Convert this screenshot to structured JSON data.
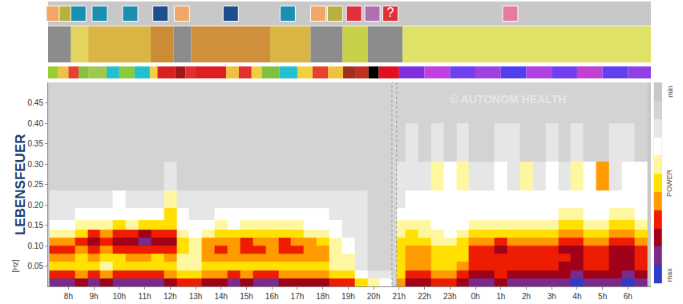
{
  "chart_data": {
    "type": "heatmap",
    "ylabel": "LEBENSFEUER",
    "yunit": "[Hz]",
    "watermark": "© AUTONOM HEALTH",
    "xlim": [
      7.2,
      30.9
    ],
    "xticks": [
      {
        "value": 8,
        "label": "8h"
      },
      {
        "value": 9,
        "label": "9h"
      },
      {
        "value": 10,
        "label": "10h"
      },
      {
        "value": 11,
        "label": "11h"
      },
      {
        "value": 12,
        "label": "12h"
      },
      {
        "value": 13,
        "label": "13h"
      },
      {
        "value": 14,
        "label": "14h"
      },
      {
        "value": 15,
        "label": "15h"
      },
      {
        "value": 16,
        "label": "16h"
      },
      {
        "value": 17,
        "label": "17h"
      },
      {
        "value": 18,
        "label": "18h"
      },
      {
        "value": 19,
        "label": "19h"
      },
      {
        "value": 20,
        "label": "20h"
      },
      {
        "value": 21,
        "label": "21h"
      },
      {
        "value": 22,
        "label": "22h"
      },
      {
        "value": 23,
        "label": "23h"
      },
      {
        "value": 24,
        "label": "0h"
      },
      {
        "value": 25,
        "label": "1h"
      },
      {
        "value": 26,
        "label": "2h"
      },
      {
        "value": 27,
        "label": "3h"
      },
      {
        "value": 28,
        "label": "4h"
      },
      {
        "value": 29,
        "label": "5h"
      },
      {
        "value": 30,
        "label": "6h"
      }
    ],
    "ylim": [
      0,
      0.5
    ],
    "yticks": [
      0.05,
      {
        "value": 0.1,
        "label": "0.10"
      },
      0.15,
      {
        "value": 0.2,
        "label": "0.20"
      },
      0.25,
      {
        "value": 0.3,
        "label": "0.30"
      },
      0.35,
      {
        "value": 0.4,
        "label": "0.40"
      },
      0.45
    ],
    "grid": false,
    "x": [
      7.5,
      8,
      8.5,
      9,
      9.5,
      10,
      10.5,
      11,
      11.5,
      12,
      12.5,
      13,
      13.5,
      14,
      14.5,
      15,
      15.5,
      16,
      16.5,
      17,
      17.5,
      18,
      18.5,
      19,
      19.5,
      20,
      20.5,
      21,
      21.5,
      22,
      22.5,
      23,
      23.5,
      24,
      24.5,
      25,
      25.5,
      26,
      26.5,
      27,
      27.5,
      28,
      28.5,
      29,
      29.5,
      30,
      30.5
    ],
    "y": [
      0.01,
      0.03,
      0.05,
      0.07,
      0.09,
      0.11,
      0.13,
      0.15,
      0.175,
      0.21,
      0.26,
      0.35,
      0.45
    ],
    "z": [
      [
        9,
        9,
        8,
        9,
        8,
        9,
        9,
        9,
        9,
        8,
        7,
        7,
        8,
        8,
        9,
        8,
        9,
        9,
        8,
        8,
        8,
        8,
        7,
        7,
        5,
        4,
        3,
        6,
        8,
        8,
        7,
        7,
        8,
        9,
        9,
        8,
        9,
        9,
        9,
        9,
        9,
        10,
        9,
        9,
        9,
        10,
        9
      ],
      [
        7,
        7,
        6,
        7,
        6,
        7,
        7,
        7,
        7,
        6,
        5,
        5,
        6,
        6,
        7,
        6,
        7,
        7,
        6,
        6,
        6,
        6,
        5,
        5,
        3,
        2,
        2,
        5,
        7,
        7,
        6,
        6,
        7,
        8,
        8,
        7,
        8,
        8,
        8,
        8,
        8,
        9,
        8,
        8,
        8,
        9,
        8
      ],
      [
        5,
        5,
        5,
        5,
        4,
        5,
        5,
        5,
        5,
        5,
        4,
        4,
        5,
        5,
        5,
        5,
        5,
        5,
        5,
        5,
        5,
        5,
        4,
        4,
        2,
        1,
        1,
        5,
        6,
        6,
        5,
        5,
        6,
        7,
        7,
        7,
        7,
        7,
        7,
        7,
        8,
        8,
        7,
        7,
        8,
        8,
        7
      ],
      [
        6,
        6,
        5,
        6,
        5,
        5,
        6,
        6,
        5,
        6,
        4,
        4,
        6,
        6,
        6,
        6,
        6,
        6,
        6,
        6,
        6,
        6,
        4,
        4,
        2,
        1,
        1,
        5,
        6,
        6,
        5,
        5,
        5,
        7,
        7,
        7,
        7,
        7,
        7,
        7,
        7,
        8,
        7,
        7,
        8,
        8,
        7
      ],
      [
        7,
        7,
        6,
        7,
        6,
        7,
        7,
        7,
        7,
        7,
        5,
        4,
        6,
        7,
        6,
        7,
        7,
        6,
        7,
        7,
        6,
        6,
        4,
        3,
        2,
        1,
        1,
        5,
        6,
        6,
        5,
        5,
        5,
        7,
        7,
        8,
        7,
        7,
        7,
        7,
        8,
        8,
        7,
        7,
        8,
        8,
        7
      ],
      [
        6,
        6,
        7,
        8,
        7,
        8,
        8,
        9,
        8,
        8,
        5,
        4,
        6,
        6,
        6,
        7,
        6,
        6,
        7,
        6,
        6,
        5,
        4,
        3,
        2,
        1,
        1,
        5,
        5,
        5,
        4,
        4,
        5,
        6,
        6,
        7,
        6,
        6,
        6,
        6,
        7,
        7,
        6,
        6,
        7,
        7,
        6
      ],
      [
        4,
        4,
        5,
        7,
        6,
        7,
        7,
        8,
        7,
        7,
        4,
        3,
        4,
        5,
        5,
        5,
        5,
        5,
        5,
        5,
        4,
        4,
        3,
        2,
        2,
        1,
        1,
        4,
        5,
        4,
        4,
        3,
        4,
        5,
        5,
        5,
        5,
        5,
        5,
        5,
        6,
        6,
        5,
        5,
        6,
        6,
        5
      ],
      [
        3,
        3,
        4,
        4,
        4,
        5,
        4,
        5,
        5,
        5,
        3,
        3,
        3,
        4,
        3,
        4,
        4,
        4,
        4,
        4,
        3,
        3,
        3,
        2,
        2,
        1,
        1,
        4,
        4,
        4,
        3,
        3,
        3,
        4,
        4,
        4,
        4,
        4,
        4,
        4,
        5,
        5,
        4,
        4,
        5,
        5,
        4
      ],
      [
        2,
        2,
        3,
        3,
        3,
        3,
        3,
        3,
        3,
        5,
        3,
        2,
        2,
        3,
        3,
        3,
        3,
        3,
        3,
        3,
        3,
        3,
        2,
        2,
        2,
        1,
        1,
        3,
        3,
        3,
        3,
        3,
        3,
        3,
        3,
        3,
        3,
        3,
        3,
        3,
        4,
        4,
        3,
        3,
        4,
        4,
        3
      ],
      [
        2,
        2,
        2,
        2,
        2,
        3,
        2,
        2,
        2,
        4,
        2,
        2,
        2,
        2,
        2,
        2,
        2,
        2,
        2,
        2,
        2,
        2,
        2,
        2,
        2,
        1,
        1,
        2,
        3,
        3,
        3,
        3,
        3,
        3,
        3,
        3,
        3,
        3,
        3,
        3,
        3,
        3,
        3,
        3,
        3,
        3,
        3
      ],
      [
        1,
        1,
        1,
        1,
        1,
        1,
        1,
        1,
        1,
        2,
        1,
        1,
        1,
        1,
        1,
        1,
        1,
        1,
        1,
        1,
        1,
        1,
        1,
        1,
        1,
        1,
        1,
        2,
        2,
        2,
        4,
        3,
        4,
        2,
        2,
        3,
        2,
        4,
        2,
        3,
        2,
        4,
        3,
        6,
        2,
        3,
        3
      ],
      [
        1,
        1,
        1,
        1,
        1,
        1,
        1,
        1,
        1,
        1,
        1,
        1,
        1,
        1,
        1,
        1,
        1,
        1,
        1,
        1,
        1,
        1,
        1,
        1,
        1,
        1,
        1,
        1,
        2,
        1,
        2,
        1,
        2,
        1,
        1,
        2,
        2,
        1,
        1,
        2,
        1,
        2,
        1,
        1,
        2,
        2,
        1
      ],
      [
        1,
        1,
        1,
        1,
        1,
        1,
        1,
        1,
        1,
        1,
        1,
        1,
        1,
        1,
        1,
        1,
        1,
        1,
        1,
        1,
        1,
        1,
        1,
        1,
        1,
        1,
        1,
        1,
        1,
        1,
        1,
        1,
        1,
        1,
        1,
        1,
        1,
        1,
        1,
        1,
        1,
        1,
        1,
        1,
        1,
        1,
        1
      ]
    ],
    "colorbar": {
      "title": "POWER",
      "range": [
        0,
        10
      ],
      "levels": [
        0,
        1,
        2,
        3,
        4,
        5,
        6,
        7,
        8,
        9,
        10
      ],
      "ticks": [
        {
          "value": 0,
          "label": "min"
        },
        {
          "value": 10,
          "label": "max"
        }
      ]
    },
    "artifact_band": [
      20.72,
      20.9
    ],
    "activities": [
      {
        "start": 7.2,
        "end": 8.1,
        "color": "#8c8c8c"
      },
      {
        "start": 8.1,
        "end": 8.78,
        "color": "#e4d35c"
      },
      {
        "start": 8.78,
        "end": 11.23,
        "color": "#d9b543"
      },
      {
        "start": 11.23,
        "end": 12.13,
        "color": "#cc8c35"
      },
      {
        "start": 12.13,
        "end": 12.82,
        "color": "#8c8c8c"
      },
      {
        "start": 12.82,
        "end": 15.93,
        "color": "#d08f3b"
      },
      {
        "start": 15.93,
        "end": 17.52,
        "color": "#d9b543"
      },
      {
        "start": 17.52,
        "end": 18.78,
        "color": "#8c8c8c"
      },
      {
        "start": 18.78,
        "end": 19.77,
        "color": "#c8d04a"
      },
      {
        "start": 19.77,
        "end": 21.14,
        "color": "#8c8c8c"
      },
      {
        "start": 21.14,
        "end": 30.9,
        "color": "#dfe266"
      }
    ],
    "activity_stripe": [
      {
        "start": 7.2,
        "end": 7.6,
        "color": "#9acd32"
      },
      {
        "start": 7.6,
        "end": 8.0,
        "color": "#f0c040"
      },
      {
        "start": 8.0,
        "end": 8.4,
        "color": "#e84030"
      },
      {
        "start": 8.4,
        "end": 8.8,
        "color": "#88c040"
      },
      {
        "start": 8.8,
        "end": 9.5,
        "color": "#a0c850"
      },
      {
        "start": 9.5,
        "end": 10.0,
        "color": "#20c0d0"
      },
      {
        "start": 10.0,
        "end": 10.6,
        "color": "#8cc83c"
      },
      {
        "start": 10.6,
        "end": 11.2,
        "color": "#20c0d0"
      },
      {
        "start": 11.2,
        "end": 11.5,
        "color": "#f0d040"
      },
      {
        "start": 11.5,
        "end": 12.2,
        "color": "#d82020"
      },
      {
        "start": 12.2,
        "end": 12.6,
        "color": "#a01818"
      },
      {
        "start": 12.6,
        "end": 13.0,
        "color": "#e03030"
      },
      {
        "start": 13.0,
        "end": 14.2,
        "color": "#e02020"
      },
      {
        "start": 14.2,
        "end": 14.7,
        "color": "#f0c040"
      },
      {
        "start": 14.7,
        "end": 15.2,
        "color": "#e03030"
      },
      {
        "start": 15.2,
        "end": 15.6,
        "color": "#f0d040"
      },
      {
        "start": 15.6,
        "end": 16.3,
        "color": "#80c040"
      },
      {
        "start": 16.3,
        "end": 17.0,
        "color": "#20c0d0"
      },
      {
        "start": 17.0,
        "end": 17.6,
        "color": "#f0d040"
      },
      {
        "start": 17.6,
        "end": 18.2,
        "color": "#e84030"
      },
      {
        "start": 18.2,
        "end": 18.8,
        "color": "#f0c040"
      },
      {
        "start": 18.8,
        "end": 19.3,
        "color": "#a03020"
      },
      {
        "start": 19.3,
        "end": 19.8,
        "color": "#c03020"
      },
      {
        "start": 19.8,
        "end": 20.2,
        "color": "#000000"
      },
      {
        "start": 20.2,
        "end": 21.0,
        "color": "#e01020"
      },
      {
        "start": 21.0,
        "end": 22.0,
        "color": "#8030e0"
      },
      {
        "start": 22.0,
        "end": 23.0,
        "color": "#c040e0"
      },
      {
        "start": 23.0,
        "end": 24.0,
        "color": "#7040f0"
      },
      {
        "start": 24.0,
        "end": 25.0,
        "color": "#a040e0"
      },
      {
        "start": 25.0,
        "end": 26.0,
        "color": "#5040f0"
      },
      {
        "start": 26.0,
        "end": 27.0,
        "color": "#b040e0"
      },
      {
        "start": 27.0,
        "end": 28.0,
        "color": "#7040f0"
      },
      {
        "start": 28.0,
        "end": 29.0,
        "color": "#c040d0"
      },
      {
        "start": 29.0,
        "end": 30.0,
        "color": "#6040f0"
      },
      {
        "start": 30.0,
        "end": 30.9,
        "color": "#9040e0"
      }
    ],
    "icons": [
      {
        "x": 7.43,
        "color": "#f0a868"
      },
      {
        "x": 7.94,
        "color": "#b9b040"
      },
      {
        "x": 8.39,
        "color": "#1a8fb0"
      },
      {
        "x": 9.23,
        "color": "#1a8fb0"
      },
      {
        "x": 10.43,
        "color": "#1a8fb0"
      },
      {
        "x": 11.62,
        "color": "#1e4f8c"
      },
      {
        "x": 12.46,
        "color": "#f0a868"
      },
      {
        "x": 14.38,
        "color": "#1e4f8c"
      },
      {
        "x": 16.62,
        "color": "#1a8fb0"
      },
      {
        "x": 17.82,
        "color": "#f0a868"
      },
      {
        "x": 18.48,
        "color": "#b9b040"
      },
      {
        "x": 19.23,
        "color": "#e0303a"
      },
      {
        "x": 19.95,
        "color": "#b070b0"
      },
      {
        "x": 20.66,
        "color": "#e0303a",
        "label": "?"
      },
      {
        "x": 25.37,
        "color": "#e57ba0"
      }
    ]
  }
}
